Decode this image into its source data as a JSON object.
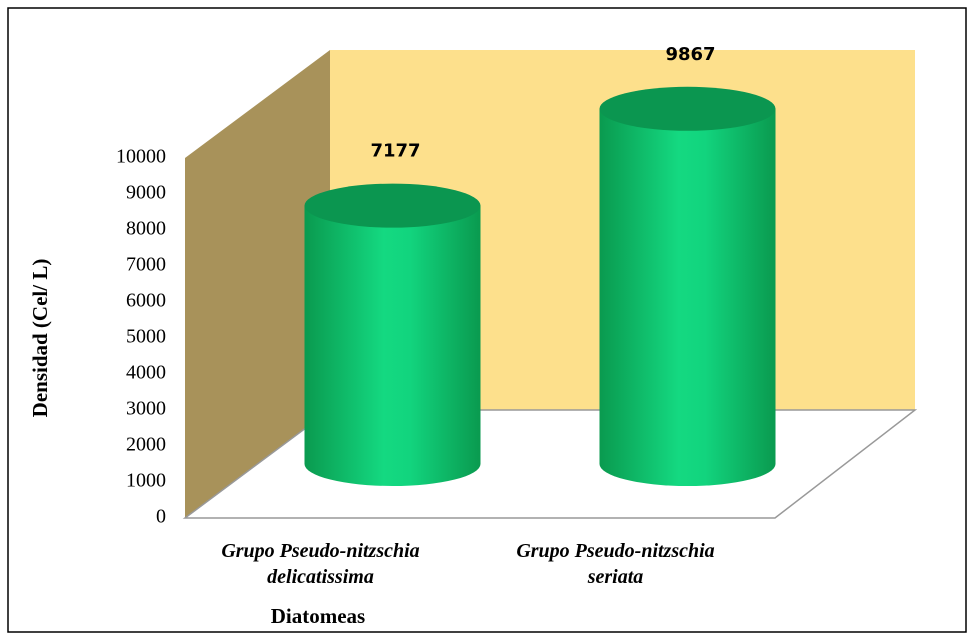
{
  "chart_data": {
    "type": "bar3d",
    "categories": [
      "Grupo Pseudo-nitzschia delicatissima",
      "Grupo Pseudo-nitzschia seriata"
    ],
    "values": [
      7177,
      9867
    ],
    "ylim": [
      0,
      10000
    ],
    "yticks": [
      0,
      1000,
      2000,
      3000,
      4000,
      5000,
      6000,
      7000,
      8000,
      9000,
      10000
    ],
    "ylabel": "Densidad (Cel/ L)",
    "xlabel": "Diatomeas",
    "color": "#12d47e",
    "grid": false
  }
}
